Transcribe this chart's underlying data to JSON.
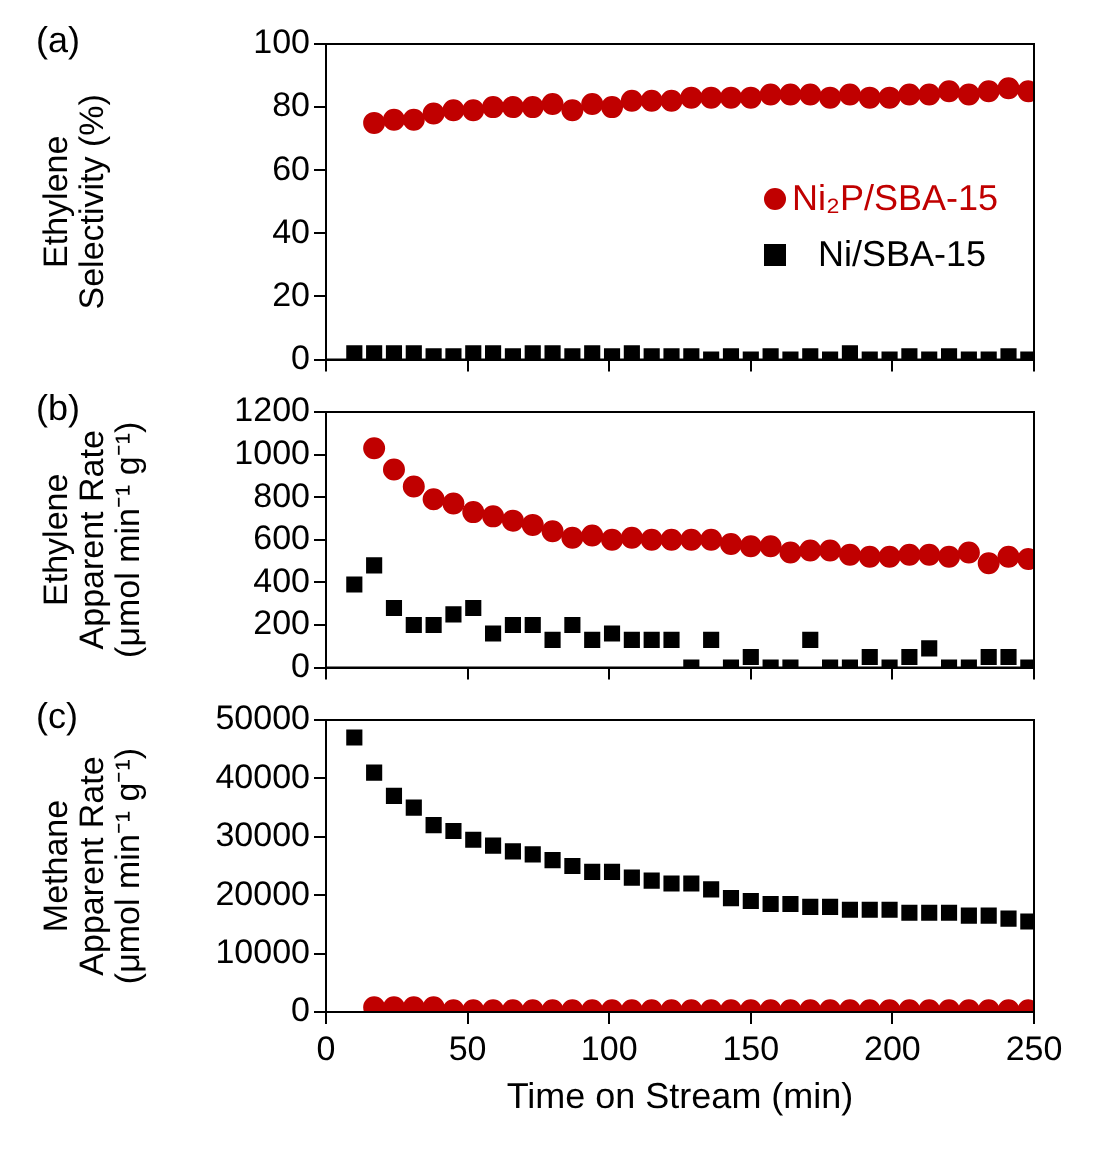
{
  "chart_data": [
    {
      "type": "scatter",
      "ylabel": "Ethylene\nSelectivity (%)",
      "annotations": [
        "(a)"
      ],
      "xlim": [
        0,
        250
      ],
      "xticks": [
        0,
        50,
        100,
        150,
        200,
        250
      ],
      "ylim": [
        0,
        100
      ],
      "yticks": [
        0,
        20,
        40,
        60,
        80,
        100
      ],
      "tick_labels": "y",
      "grid": false,
      "legend": "right",
      "series": [
        {
          "name": "Ni₂P/SBA-15",
          "color": "#c00000",
          "marker": "circle",
          "x": [
            17,
            24,
            31,
            38,
            45,
            52,
            59,
            66,
            73,
            80,
            87,
            94,
            101,
            108,
            115,
            122,
            129,
            136,
            143,
            150,
            157,
            164,
            171,
            178,
            185,
            192,
            199,
            206,
            213,
            220,
            227,
            234,
            241,
            248
          ],
          "values": [
            75,
            76,
            76,
            78,
            79,
            79,
            80,
            80,
            80,
            81,
            79,
            81,
            80,
            82,
            82,
            82,
            83,
            83,
            83,
            83,
            84,
            84,
            84,
            83,
            84,
            83,
            83,
            84,
            84,
            85,
            84,
            85,
            86,
            85
          ]
        },
        {
          "name": "Ni/SBA-15",
          "color": "#000000",
          "marker": "square",
          "x": [
            10,
            17,
            24,
            31,
            38,
            45,
            52,
            59,
            66,
            73,
            80,
            87,
            94,
            101,
            108,
            115,
            122,
            129,
            136,
            143,
            150,
            157,
            164,
            171,
            178,
            185,
            192,
            199,
            206,
            213,
            220,
            227,
            234,
            241,
            248
          ],
          "values": [
            2,
            2,
            2,
            2,
            1,
            1,
            2,
            2,
            1,
            2,
            2,
            1,
            2,
            1,
            2,
            1,
            1,
            1,
            0,
            1,
            0,
            1,
            0,
            1,
            0,
            2,
            0,
            0,
            1,
            0,
            1,
            0,
            0,
            1,
            0
          ]
        }
      ]
    },
    {
      "type": "scatter",
      "ylabel": "Ethylene\nApparent Rate\n(μmol min⁻¹ g⁻¹)",
      "annotations": [
        "(b)"
      ],
      "xlim": [
        0,
        250
      ],
      "xticks": [
        0,
        50,
        100,
        150,
        200,
        250
      ],
      "ylim": [
        0,
        1200
      ],
      "yticks": [
        0,
        200,
        400,
        600,
        800,
        1000,
        1200
      ],
      "tick_labels": "y",
      "grid": false,
      "series": [
        {
          "color": "#c00000",
          "marker": "circle",
          "x": [
            17,
            24,
            31,
            38,
            45,
            52,
            59,
            66,
            73,
            80,
            87,
            94,
            101,
            108,
            115,
            122,
            129,
            136,
            143,
            150,
            157,
            164,
            171,
            178,
            185,
            192,
            199,
            206,
            213,
            220,
            227,
            234,
            241,
            248
          ],
          "values": [
            1030,
            930,
            850,
            790,
            770,
            730,
            710,
            690,
            670,
            640,
            610,
            620,
            600,
            610,
            600,
            600,
            600,
            600,
            580,
            570,
            570,
            540,
            550,
            550,
            530,
            520,
            520,
            530,
            530,
            520,
            540,
            490,
            520,
            510
          ]
        },
        {
          "color": "#000000",
          "marker": "square",
          "x": [
            10,
            17,
            24,
            31,
            38,
            45,
            52,
            59,
            66,
            73,
            80,
            87,
            94,
            101,
            108,
            115,
            122,
            129,
            136,
            143,
            150,
            157,
            164,
            171,
            178,
            185,
            192,
            199,
            206,
            213,
            220,
            227,
            234,
            241,
            248
          ],
          "values": [
            390,
            480,
            280,
            200,
            200,
            250,
            280,
            160,
            200,
            200,
            130,
            200,
            130,
            160,
            130,
            130,
            130,
            0,
            130,
            0,
            50,
            0,
            0,
            130,
            0,
            0,
            50,
            0,
            50,
            90,
            0,
            0,
            50,
            50,
            0
          ]
        }
      ]
    },
    {
      "type": "scatter",
      "ylabel": "Methane\nApparent Rate\n(μmol min⁻¹ g⁻¹)",
      "xlabel": "Time on Stream (min)",
      "annotations": [
        "(c)"
      ],
      "xlim": [
        0,
        250
      ],
      "xticks": [
        0,
        50,
        100,
        150,
        200,
        250
      ],
      "ylim": [
        0,
        50000
      ],
      "yticks": [
        0,
        10000,
        20000,
        30000,
        40000,
        50000
      ],
      "grid": false,
      "series": [
        {
          "color": "#c00000",
          "marker": "circle",
          "x": [
            17,
            24,
            31,
            38,
            45,
            52,
            59,
            66,
            73,
            80,
            87,
            94,
            101,
            108,
            115,
            122,
            129,
            136,
            143,
            150,
            157,
            164,
            171,
            178,
            185,
            192,
            199,
            206,
            213,
            220,
            227,
            234,
            241,
            248
          ],
          "values": [
            800,
            800,
            800,
            800,
            300,
            300,
            300,
            300,
            300,
            300,
            300,
            300,
            300,
            300,
            300,
            300,
            300,
            300,
            300,
            300,
            300,
            300,
            300,
            300,
            300,
            300,
            300,
            300,
            300,
            300,
            300,
            300,
            300,
            300
          ]
        },
        {
          "color": "#000000",
          "marker": "square",
          "x": [
            10,
            17,
            24,
            31,
            38,
            45,
            52,
            59,
            66,
            73,
            80,
            87,
            94,
            101,
            108,
            115,
            122,
            129,
            136,
            143,
            150,
            157,
            164,
            171,
            178,
            185,
            192,
            199,
            206,
            213,
            220,
            227,
            234,
            241,
            248
          ],
          "values": [
            47000,
            41000,
            37000,
            35000,
            32000,
            31000,
            29500,
            28500,
            27500,
            27000,
            26000,
            25000,
            24000,
            24000,
            23000,
            22500,
            22000,
            22000,
            21000,
            19500,
            19000,
            18500,
            18500,
            18000,
            18000,
            17500,
            17500,
            17500,
            17000,
            17000,
            17000,
            16500,
            16500,
            16000,
            15500
          ]
        }
      ]
    }
  ]
}
